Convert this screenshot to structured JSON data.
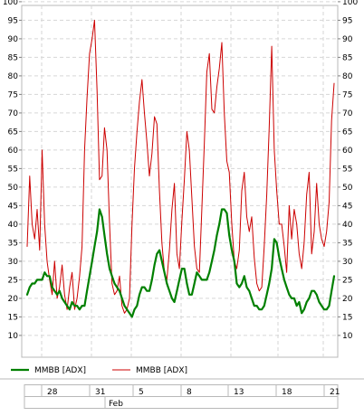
{
  "chart_data": {
    "type": "line",
    "ylim": [
      5,
      100
    ],
    "yticks": [
      10,
      15,
      20,
      25,
      30,
      35,
      40,
      45,
      50,
      55,
      60,
      65,
      70,
      75,
      80,
      85,
      90,
      95,
      100
    ],
    "x_tick_labels": [
      "28",
      "31",
      "5",
      "8",
      "13",
      "18",
      "21"
    ],
    "month_label": "Feb",
    "grid": true,
    "legend_position": "bottom",
    "series": [
      {
        "name": "MMBB [ADX]",
        "color": "#008000",
        "values": [
          21,
          23,
          24,
          24,
          25,
          25,
          25,
          27,
          26,
          26,
          23,
          22,
          21,
          22,
          20,
          19,
          18,
          17,
          19,
          18,
          18,
          17,
          18,
          18,
          22,
          26,
          30,
          34,
          38,
          44,
          42,
          37,
          32,
          28,
          26,
          24,
          23,
          22,
          20,
          18,
          17,
          16,
          15,
          17,
          18,
          21,
          23,
          23,
          22,
          22,
          25,
          29,
          32,
          33,
          30,
          27,
          24,
          22,
          20,
          19,
          22,
          25,
          28,
          28,
          24,
          21,
          21,
          24,
          27,
          26,
          25,
          25,
          25,
          27,
          30,
          33,
          37,
          40,
          44,
          44,
          43,
          37,
          33,
          30,
          24,
          23,
          24,
          26,
          23,
          22,
          20,
          18,
          18,
          17,
          17,
          18,
          21,
          24,
          28,
          36,
          35,
          31,
          28,
          25,
          23,
          21,
          20,
          20,
          18,
          19,
          16,
          17,
          19,
          20,
          22,
          22,
          21,
          19,
          18,
          17,
          17,
          18,
          22,
          26
        ]
      },
      {
        "name": "MMBB [ADX]",
        "color": "#cc0000",
        "values": [
          34,
          53,
          40,
          36,
          44,
          33,
          60,
          40,
          30,
          25,
          21,
          30,
          20,
          23,
          29,
          21,
          17,
          23,
          27,
          17,
          20,
          26,
          34,
          60,
          74,
          86,
          90,
          95,
          76,
          52,
          53,
          66,
          60,
          40,
          24,
          21,
          22,
          26,
          18,
          16,
          17,
          20,
          40,
          55,
          65,
          73,
          79,
          70,
          62,
          53,
          59,
          69,
          67,
          49,
          35,
          27,
          25,
          33,
          44,
          51,
          32,
          28,
          41,
          52,
          65,
          60,
          47,
          34,
          28,
          27,
          44,
          62,
          81,
          86,
          71,
          70,
          77,
          82,
          89,
          70,
          57,
          54,
          40,
          30,
          28,
          33,
          49,
          54,
          42,
          38,
          42,
          31,
          24,
          22,
          23,
          34,
          48,
          66,
          88,
          60,
          49,
          40,
          40,
          34,
          27,
          45,
          36,
          44,
          40,
          32,
          28,
          35,
          48,
          54,
          32,
          38,
          51,
          40,
          36,
          34,
          38,
          46,
          68,
          78
        ]
      }
    ]
  },
  "legend": [
    {
      "label": "MMBB [ADX]",
      "color": "#008000"
    },
    {
      "label": "MMBB [ADX]",
      "color": "#cc0000"
    }
  ]
}
